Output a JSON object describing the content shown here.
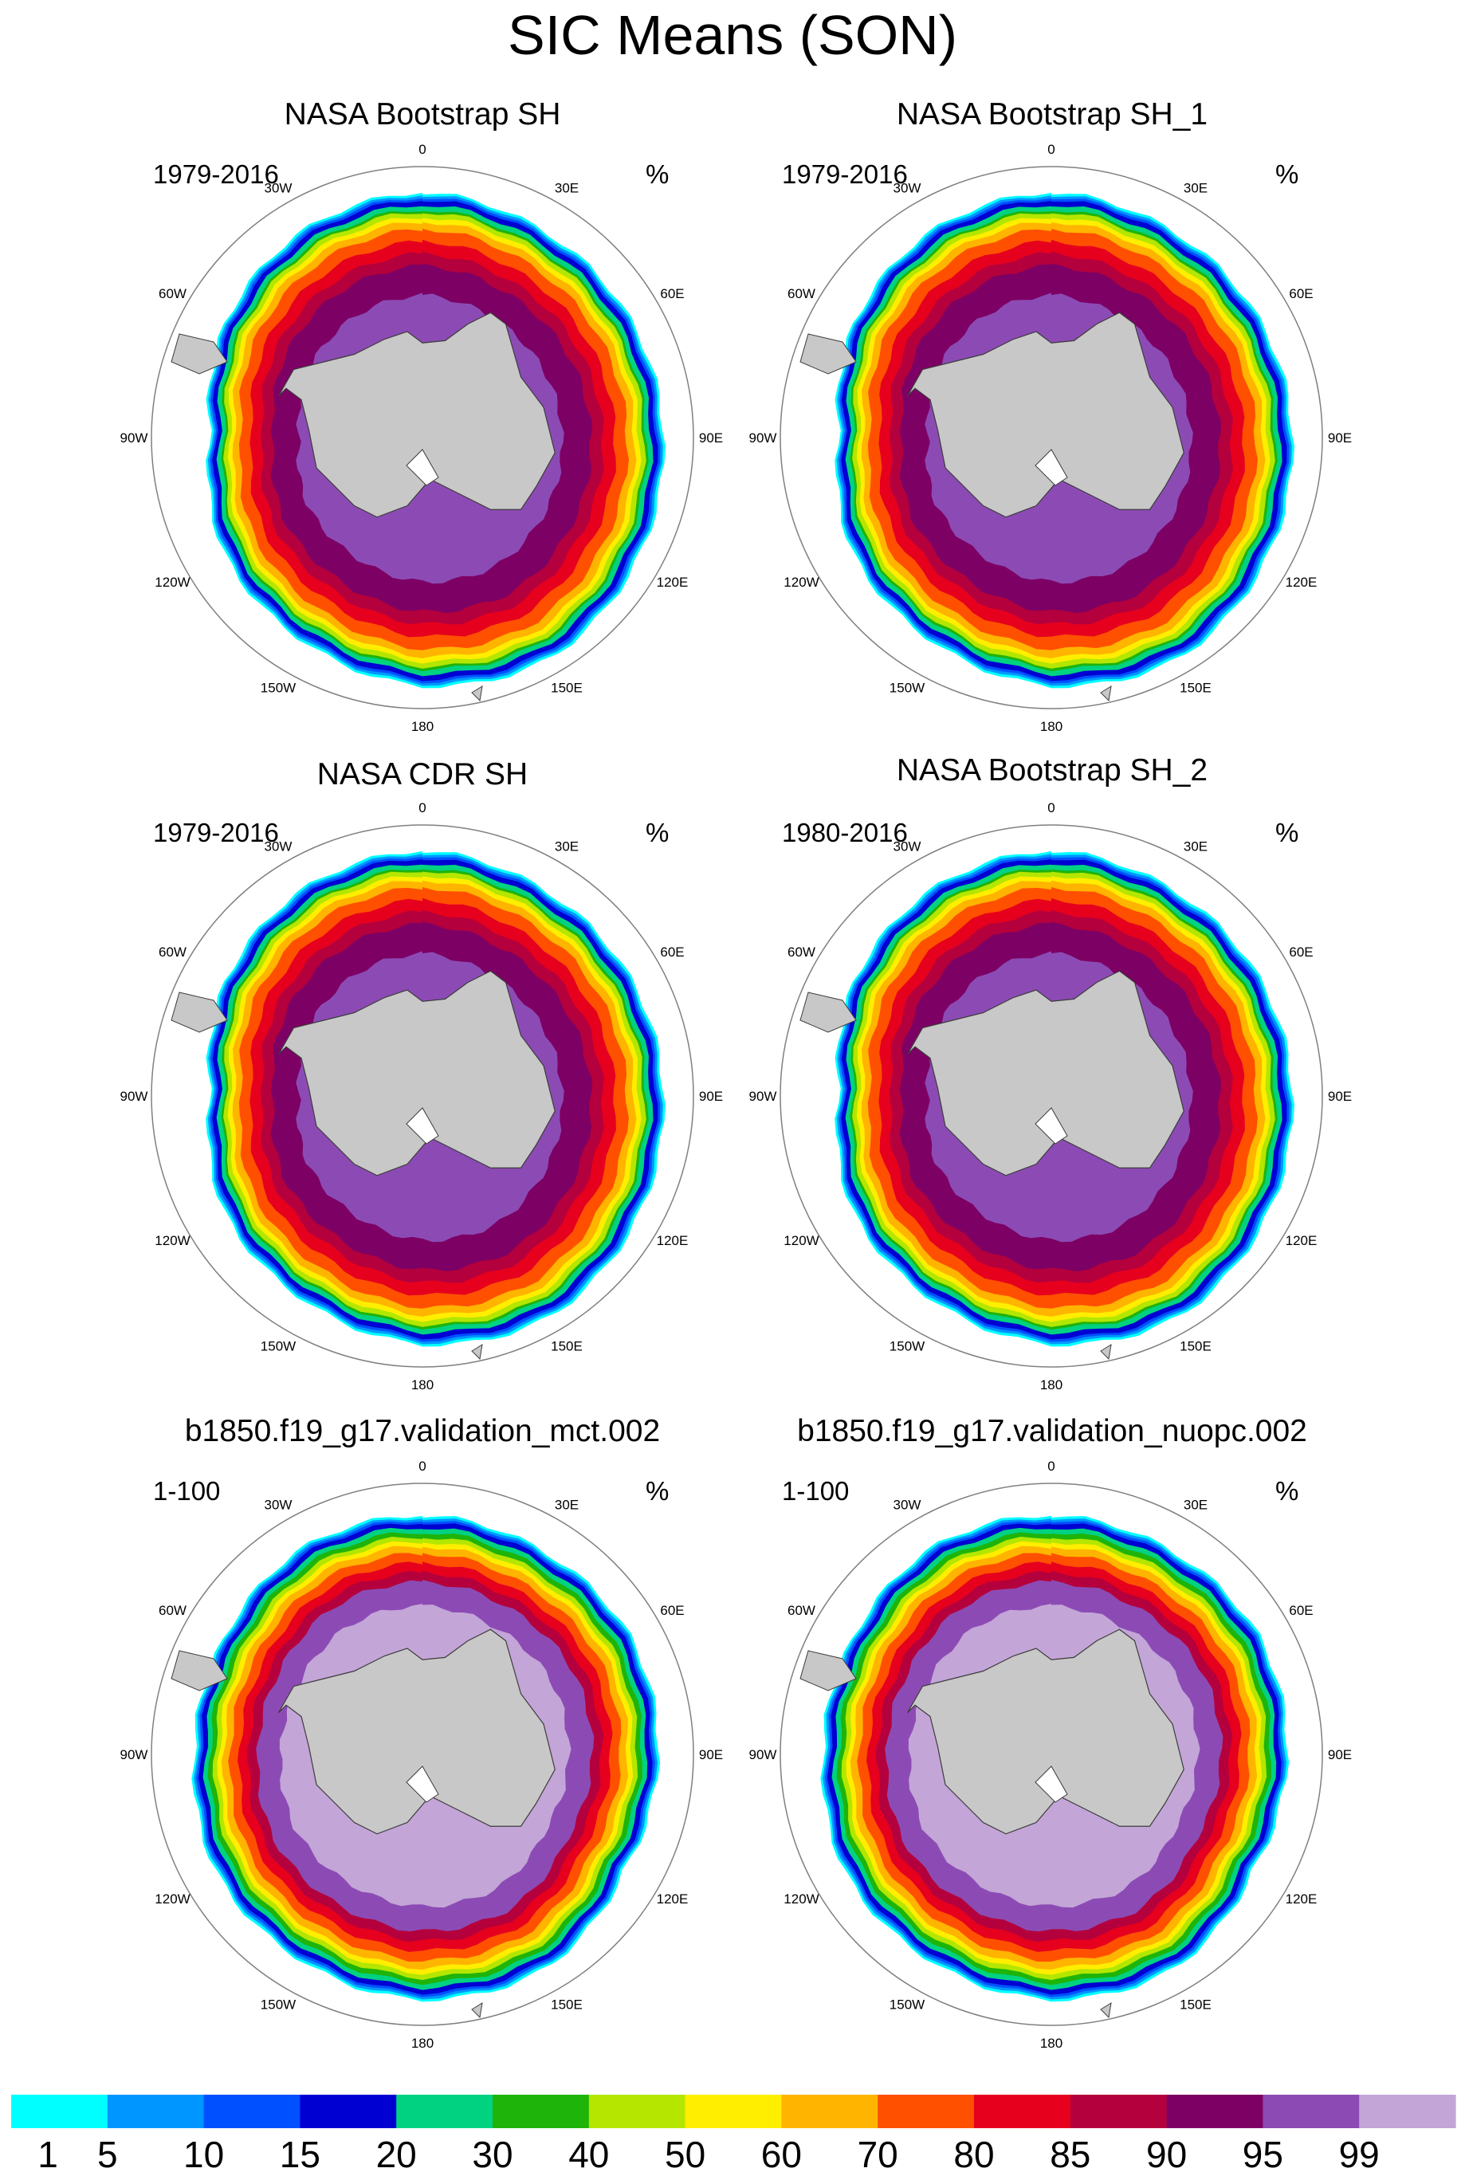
{
  "figure": {
    "title": "SIC Means (SON)",
    "units": "%",
    "longitude_labels": [
      "0",
      "30E",
      "60E",
      "90E",
      "120E",
      "150E",
      "180",
      "150W",
      "120W",
      "90W",
      "60W",
      "30W"
    ]
  },
  "chart_data": [
    {
      "type": "heatmap",
      "title": "NASA Bootstrap SH",
      "period": "1979-2016",
      "units": "%",
      "variable": "SIC",
      "season": "SON",
      "projection": "south-polar-stereographic"
    },
    {
      "type": "heatmap",
      "title": "NASA Bootstrap SH_1",
      "period": "1979-2016",
      "units": "%",
      "variable": "SIC",
      "season": "SON",
      "projection": "south-polar-stereographic"
    },
    {
      "type": "heatmap",
      "title": "NASA CDR SH",
      "period": "1979-2016",
      "units": "%",
      "variable": "SIC",
      "season": "SON",
      "projection": "south-polar-stereographic"
    },
    {
      "type": "heatmap",
      "title": "NASA Bootstrap SH_2",
      "period": "1980-2016",
      "units": "%",
      "variable": "SIC",
      "season": "SON",
      "projection": "south-polar-stereographic"
    },
    {
      "type": "heatmap",
      "title": "b1850.f19_g17.validation_mct.002",
      "period": "1-100",
      "units": "%",
      "variable": "SIC",
      "season": "SON",
      "projection": "south-polar-stereographic"
    },
    {
      "type": "heatmap",
      "title": "b1850.f19_g17.validation_nuopc.002",
      "period": "1-100",
      "units": "%",
      "variable": "SIC",
      "season": "SON",
      "projection": "south-polar-stereographic"
    }
  ],
  "colorbar": {
    "levels": [
      "1",
      "5",
      "10",
      "15",
      "20",
      "30",
      "40",
      "50",
      "60",
      "70",
      "80",
      "85",
      "90",
      "95",
      "99"
    ],
    "colors": [
      "#00ffff",
      "#0096ff",
      "#0050ff",
      "#0000d2",
      "#00d282",
      "#1eb40a",
      "#b4e600",
      "#ffee00",
      "#ffb400",
      "#ff5000",
      "#e6001e",
      "#b4003c",
      "#7d0064",
      "#8c4bb4",
      "#c3a5d7"
    ]
  },
  "colors": {
    "land": "#c8c8c8",
    "coast": "#3c3c3c",
    "boundary": "#808080"
  }
}
